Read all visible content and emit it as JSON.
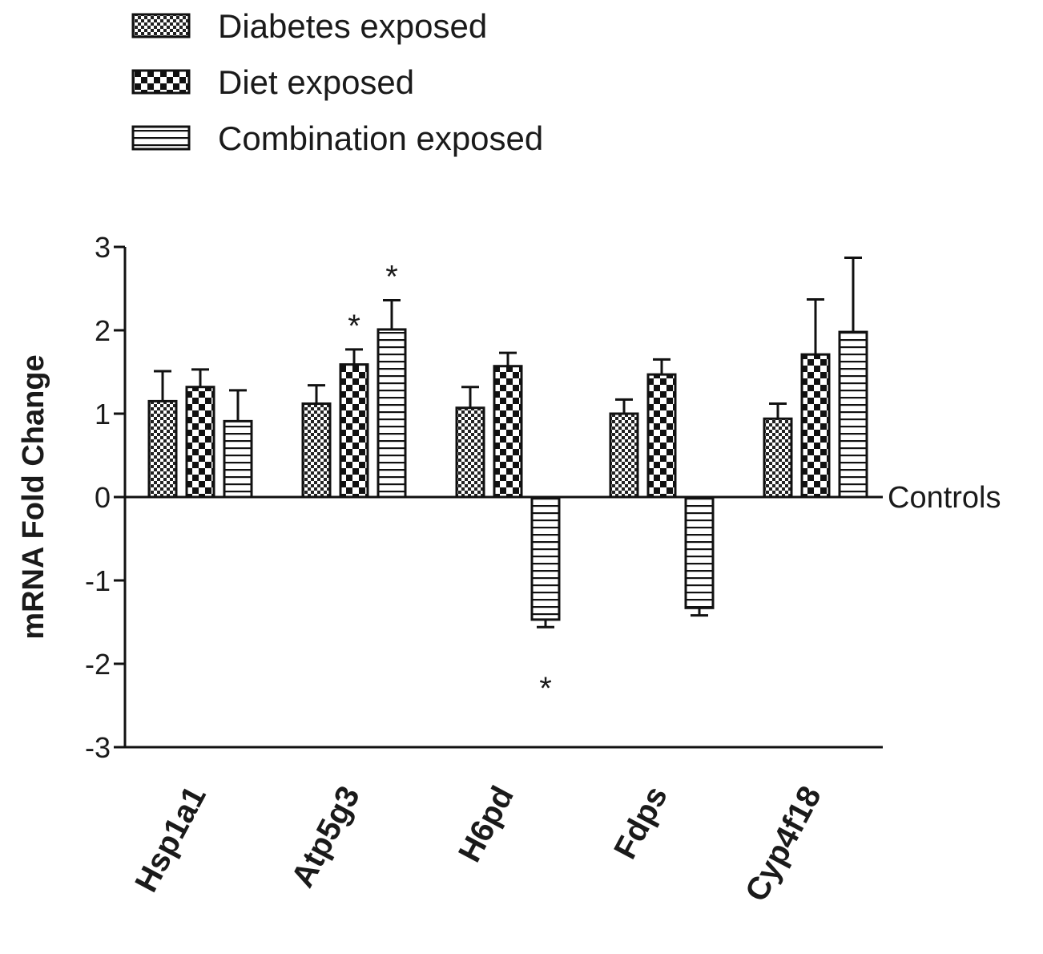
{
  "chart_data": {
    "type": "bar",
    "ylabel": "mRNA Fold Change",
    "xlabel": "",
    "ylim": [
      -3,
      3
    ],
    "yticks": [
      3,
      2,
      1,
      0,
      -1,
      -2,
      -3
    ],
    "grid": false,
    "legend_position": "top-left",
    "reference_line": {
      "value": 0,
      "label": "Controls"
    },
    "categories": [
      "Hsp1a1",
      "Atp5g3",
      "H6pd",
      "Fdps",
      "Cyp4f18"
    ],
    "series": [
      {
        "name": "Diabetes exposed",
        "pattern": "fine-checker",
        "values": [
          1.15,
          1.12,
          1.07,
          1.0,
          0.94
        ],
        "errors": [
          0.36,
          0.22,
          0.25,
          0.17,
          0.18
        ],
        "significance": [
          "",
          "",
          "",
          "",
          ""
        ]
      },
      {
        "name": "Diet exposed",
        "pattern": "coarse-checker",
        "values": [
          1.32,
          1.59,
          1.57,
          1.47,
          1.71
        ],
        "errors": [
          0.21,
          0.18,
          0.16,
          0.18,
          0.66
        ],
        "significance": [
          "",
          "*",
          "",
          "",
          ""
        ]
      },
      {
        "name": "Combination exposed",
        "pattern": "horizontal-stripes",
        "values": [
          0.91,
          2.01,
          -1.47,
          -1.33,
          1.98
        ],
        "errors": [
          0.37,
          0.35,
          0.09,
          0.09,
          0.89
        ],
        "significance": [
          "",
          "*",
          "*",
          "",
          ""
        ]
      }
    ]
  }
}
